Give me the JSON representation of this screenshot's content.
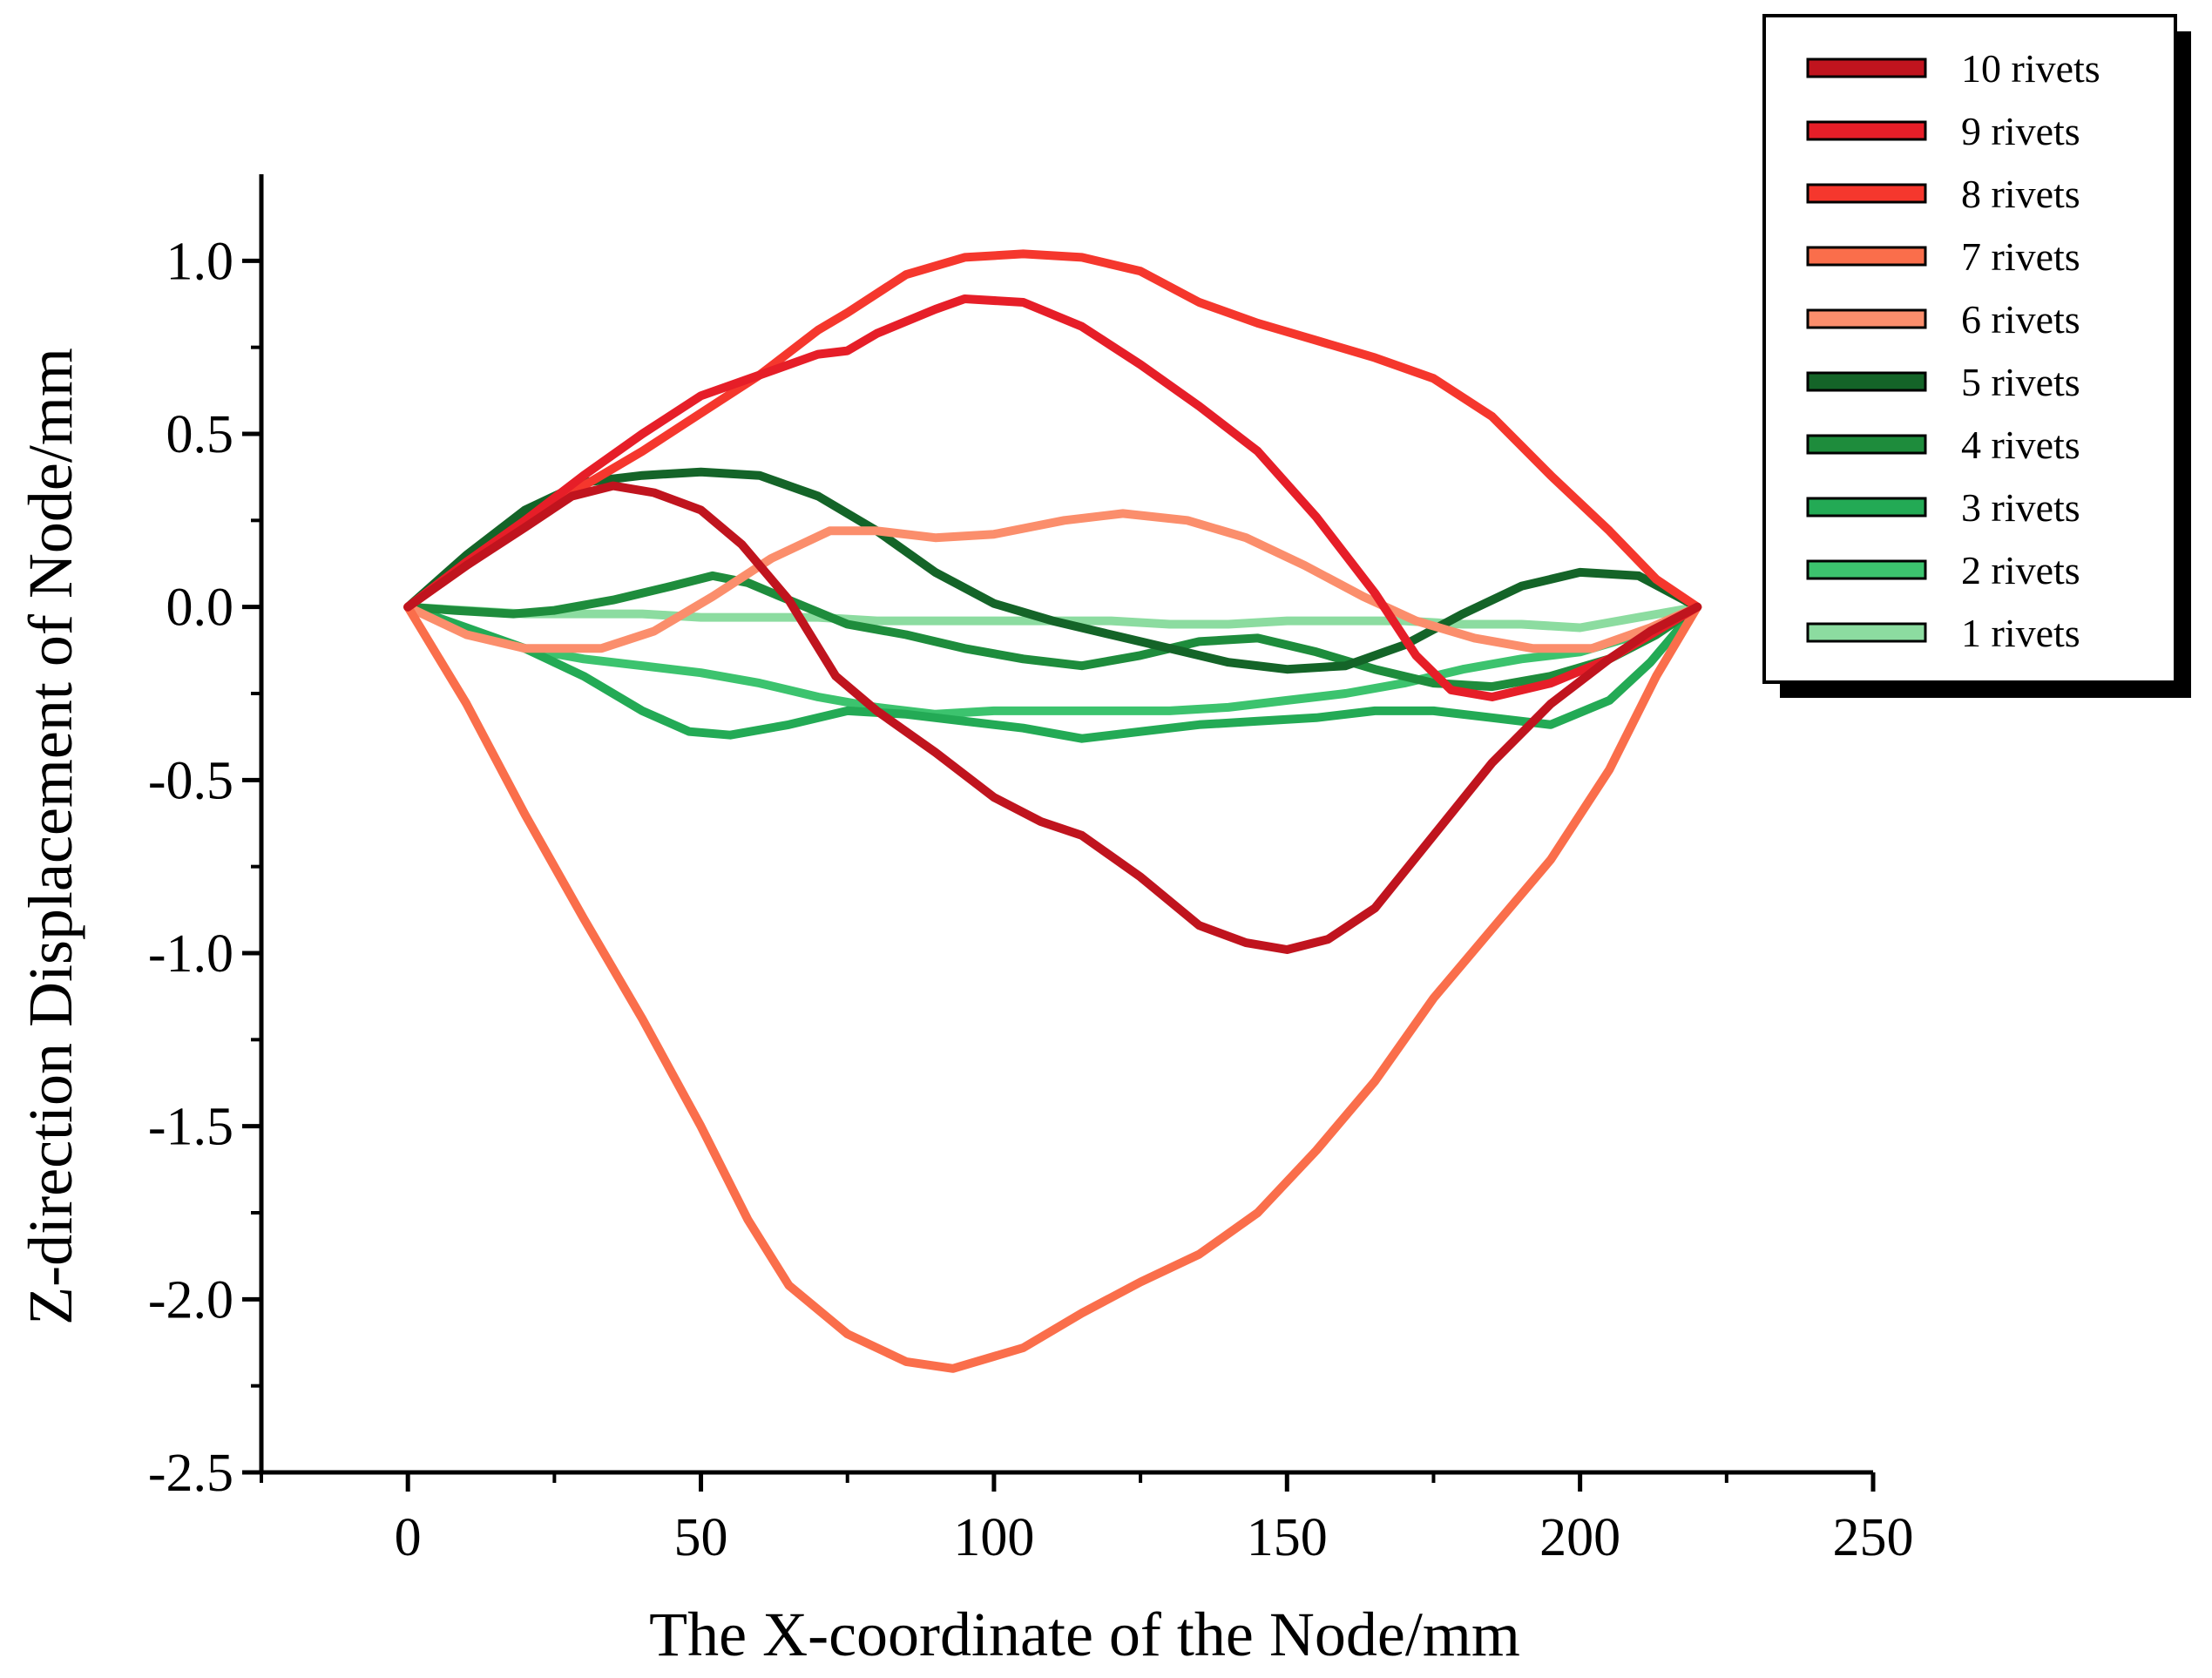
{
  "chart_data": {
    "type": "line",
    "title": "",
    "xlabel": "The X-coordinate of the Node/mm",
    "ylabel": "Z-direction Displacement of Node/mm",
    "xlim": [
      -25,
      250
    ],
    "ylim": [
      -2.5,
      1.25
    ],
    "xticks": [
      0,
      50,
      100,
      150,
      200,
      250
    ],
    "xtick_labels": [
      "0",
      "50",
      "100",
      "150",
      "200",
      "250"
    ],
    "yticks": [
      -2.5,
      -2.0,
      -1.5,
      -1.0,
      -0.5,
      0.0,
      0.5,
      1.0
    ],
    "ytick_labels": [
      "-2.5",
      "-2.0",
      "-1.5",
      "-1.0",
      "-0.5",
      "0.0",
      "0.5",
      "1.0"
    ],
    "legend_position": "top-right, outside plot",
    "series": [
      {
        "name": "10 rivets",
        "color": "#c0141e",
        "points": [
          [
            0,
            0
          ],
          [
            10,
            0.12
          ],
          [
            20,
            0.23
          ],
          [
            28,
            0.32
          ],
          [
            35,
            0.35
          ],
          [
            42,
            0.33
          ],
          [
            50,
            0.28
          ],
          [
            57,
            0.18
          ],
          [
            65,
            0.02
          ],
          [
            73,
            -0.2
          ],
          [
            80,
            -0.3
          ],
          [
            90,
            -0.42
          ],
          [
            100,
            -0.55
          ],
          [
            108,
            -0.62
          ],
          [
            115,
            -0.66
          ],
          [
            125,
            -0.78
          ],
          [
            135,
            -0.92
          ],
          [
            143,
            -0.97
          ],
          [
            150,
            -0.99
          ],
          [
            157,
            -0.96
          ],
          [
            165,
            -0.87
          ],
          [
            175,
            -0.66
          ],
          [
            185,
            -0.45
          ],
          [
            195,
            -0.28
          ],
          [
            205,
            -0.15
          ],
          [
            212,
            -0.07
          ],
          [
            220,
            0
          ]
        ]
      },
      {
        "name": "9 rivets",
        "color": "#e61e28",
        "points": [
          [
            0,
            0
          ],
          [
            10,
            0.13
          ],
          [
            20,
            0.25
          ],
          [
            30,
            0.38
          ],
          [
            40,
            0.5
          ],
          [
            50,
            0.61
          ],
          [
            60,
            0.67
          ],
          [
            70,
            0.73
          ],
          [
            75,
            0.74
          ],
          [
            80,
            0.79
          ],
          [
            90,
            0.86
          ],
          [
            95,
            0.89
          ],
          [
            105,
            0.88
          ],
          [
            115,
            0.81
          ],
          [
            125,
            0.7
          ],
          [
            135,
            0.58
          ],
          [
            145,
            0.45
          ],
          [
            155,
            0.26
          ],
          [
            165,
            0.04
          ],
          [
            172,
            -0.14
          ],
          [
            178,
            -0.24
          ],
          [
            185,
            -0.26
          ],
          [
            195,
            -0.22
          ],
          [
            205,
            -0.15
          ],
          [
            213,
            -0.07
          ],
          [
            220,
            0
          ]
        ]
      },
      {
        "name": "8 rivets",
        "color": "#f5372d",
        "points": [
          [
            0,
            0
          ],
          [
            10,
            0.12
          ],
          [
            20,
            0.24
          ],
          [
            30,
            0.35
          ],
          [
            40,
            0.45
          ],
          [
            50,
            0.56
          ],
          [
            60,
            0.67
          ],
          [
            70,
            0.8
          ],
          [
            75,
            0.85
          ],
          [
            85,
            0.96
          ],
          [
            95,
            1.01
          ],
          [
            105,
            1.02
          ],
          [
            115,
            1.01
          ],
          [
            125,
            0.97
          ],
          [
            135,
            0.88
          ],
          [
            145,
            0.82
          ],
          [
            155,
            0.77
          ],
          [
            165,
            0.72
          ],
          [
            175,
            0.66
          ],
          [
            185,
            0.55
          ],
          [
            195,
            0.38
          ],
          [
            205,
            0.22
          ],
          [
            213,
            0.08
          ],
          [
            220,
            0
          ]
        ]
      },
      {
        "name": "7 rivets",
        "color": "#fa6e4b",
        "points": [
          [
            0,
            0
          ],
          [
            10,
            -0.28
          ],
          [
            20,
            -0.6
          ],
          [
            30,
            -0.9
          ],
          [
            40,
            -1.19
          ],
          [
            50,
            -1.5
          ],
          [
            58,
            -1.77
          ],
          [
            65,
            -1.96
          ],
          [
            75,
            -2.1
          ],
          [
            85,
            -2.18
          ],
          [
            93,
            -2.2
          ],
          [
            105,
            -2.14
          ],
          [
            115,
            -2.04
          ],
          [
            125,
            -1.95
          ],
          [
            135,
            -1.87
          ],
          [
            145,
            -1.75
          ],
          [
            155,
            -1.57
          ],
          [
            165,
            -1.37
          ],
          [
            175,
            -1.13
          ],
          [
            185,
            -0.93
          ],
          [
            195,
            -0.73
          ],
          [
            205,
            -0.47
          ],
          [
            213,
            -0.2
          ],
          [
            220,
            0
          ]
        ]
      },
      {
        "name": "6 rivets",
        "color": "#fb8e6c",
        "points": [
          [
            0,
            0
          ],
          [
            10,
            -0.08
          ],
          [
            20,
            -0.12
          ],
          [
            33,
            -0.12
          ],
          [
            42,
            -0.07
          ],
          [
            52,
            0.03
          ],
          [
            62,
            0.14
          ],
          [
            72,
            0.22
          ],
          [
            80,
            0.22
          ],
          [
            90,
            0.2
          ],
          [
            100,
            0.21
          ],
          [
            112,
            0.25
          ],
          [
            122,
            0.27
          ],
          [
            133,
            0.25
          ],
          [
            143,
            0.2
          ],
          [
            153,
            0.12
          ],
          [
            163,
            0.03
          ],
          [
            172,
            -0.04
          ],
          [
            182,
            -0.09
          ],
          [
            192,
            -0.12
          ],
          [
            202,
            -0.12
          ],
          [
            212,
            -0.06
          ],
          [
            220,
            0
          ]
        ]
      },
      {
        "name": "5 rivets",
        "color": "#146428",
        "points": [
          [
            0,
            0
          ],
          [
            10,
            0.15
          ],
          [
            20,
            0.28
          ],
          [
            30,
            0.36
          ],
          [
            40,
            0.38
          ],
          [
            50,
            0.39
          ],
          [
            60,
            0.38
          ],
          [
            70,
            0.32
          ],
          [
            80,
            0.22
          ],
          [
            90,
            0.1
          ],
          [
            100,
            0.01
          ],
          [
            110,
            -0.04
          ],
          [
            120,
            -0.08
          ],
          [
            130,
            -0.12
          ],
          [
            140,
            -0.16
          ],
          [
            150,
            -0.18
          ],
          [
            160,
            -0.17
          ],
          [
            170,
            -0.11
          ],
          [
            180,
            -0.02
          ],
          [
            190,
            0.06
          ],
          [
            200,
            0.1
          ],
          [
            210,
            0.09
          ],
          [
            220,
            0
          ]
        ]
      },
      {
        "name": "4 rivets",
        "color": "#1e8c3c",
        "points": [
          [
            0,
            0
          ],
          [
            8,
            -0.01
          ],
          [
            18,
            -0.02
          ],
          [
            25,
            -0.01
          ],
          [
            35,
            0.02
          ],
          [
            45,
            0.06
          ],
          [
            52,
            0.09
          ],
          [
            58,
            0.07
          ],
          [
            65,
            0.02
          ],
          [
            75,
            -0.05
          ],
          [
            85,
            -0.08
          ],
          [
            95,
            -0.12
          ],
          [
            105,
            -0.15
          ],
          [
            115,
            -0.17
          ],
          [
            125,
            -0.14
          ],
          [
            135,
            -0.1
          ],
          [
            145,
            -0.09
          ],
          [
            155,
            -0.13
          ],
          [
            165,
            -0.18
          ],
          [
            175,
            -0.22
          ],
          [
            185,
            -0.23
          ],
          [
            195,
            -0.2
          ],
          [
            205,
            -0.15
          ],
          [
            213,
            -0.08
          ],
          [
            220,
            0
          ]
        ]
      },
      {
        "name": "3 rivets",
        "color": "#23aa55",
        "points": [
          [
            0,
            0
          ],
          [
            10,
            -0.06
          ],
          [
            20,
            -0.12
          ],
          [
            30,
            -0.2
          ],
          [
            40,
            -0.3
          ],
          [
            48,
            -0.36
          ],
          [
            55,
            -0.37
          ],
          [
            65,
            -0.34
          ],
          [
            75,
            -0.3
          ],
          [
            85,
            -0.31
          ],
          [
            95,
            -0.33
          ],
          [
            105,
            -0.35
          ],
          [
            115,
            -0.38
          ],
          [
            125,
            -0.36
          ],
          [
            135,
            -0.34
          ],
          [
            145,
            -0.33
          ],
          [
            155,
            -0.32
          ],
          [
            165,
            -0.3
          ],
          [
            175,
            -0.3
          ],
          [
            185,
            -0.32
          ],
          [
            195,
            -0.34
          ],
          [
            205,
            -0.27
          ],
          [
            212,
            -0.16
          ],
          [
            220,
            0
          ]
        ]
      },
      {
        "name": "2 rivets",
        "color": "#3cc36e",
        "points": [
          [
            0,
            0
          ],
          [
            10,
            -0.07
          ],
          [
            20,
            -0.12
          ],
          [
            30,
            -0.15
          ],
          [
            40,
            -0.17
          ],
          [
            50,
            -0.19
          ],
          [
            60,
            -0.22
          ],
          [
            70,
            -0.26
          ],
          [
            80,
            -0.29
          ],
          [
            90,
            -0.31
          ],
          [
            100,
            -0.3
          ],
          [
            110,
            -0.3
          ],
          [
            120,
            -0.3
          ],
          [
            130,
            -0.3
          ],
          [
            140,
            -0.29
          ],
          [
            150,
            -0.27
          ],
          [
            160,
            -0.25
          ],
          [
            170,
            -0.22
          ],
          [
            180,
            -0.18
          ],
          [
            190,
            -0.15
          ],
          [
            200,
            -0.13
          ],
          [
            210,
            -0.08
          ],
          [
            220,
            0
          ]
        ]
      },
      {
        "name": "1 rivets",
        "color": "#8cdca0",
        "points": [
          [
            0,
            0
          ],
          [
            10,
            -0.01
          ],
          [
            20,
            -0.02
          ],
          [
            30,
            -0.02
          ],
          [
            40,
            -0.02
          ],
          [
            50,
            -0.03
          ],
          [
            60,
            -0.03
          ],
          [
            70,
            -0.03
          ],
          [
            80,
            -0.04
          ],
          [
            90,
            -0.04
          ],
          [
            100,
            -0.04
          ],
          [
            110,
            -0.04
          ],
          [
            120,
            -0.04
          ],
          [
            130,
            -0.05
          ],
          [
            140,
            -0.05
          ],
          [
            150,
            -0.04
          ],
          [
            160,
            -0.04
          ],
          [
            170,
            -0.04
          ],
          [
            180,
            -0.05
          ],
          [
            190,
            -0.05
          ],
          [
            200,
            -0.06
          ],
          [
            210,
            -0.03
          ],
          [
            220,
            0
          ]
        ]
      }
    ]
  }
}
